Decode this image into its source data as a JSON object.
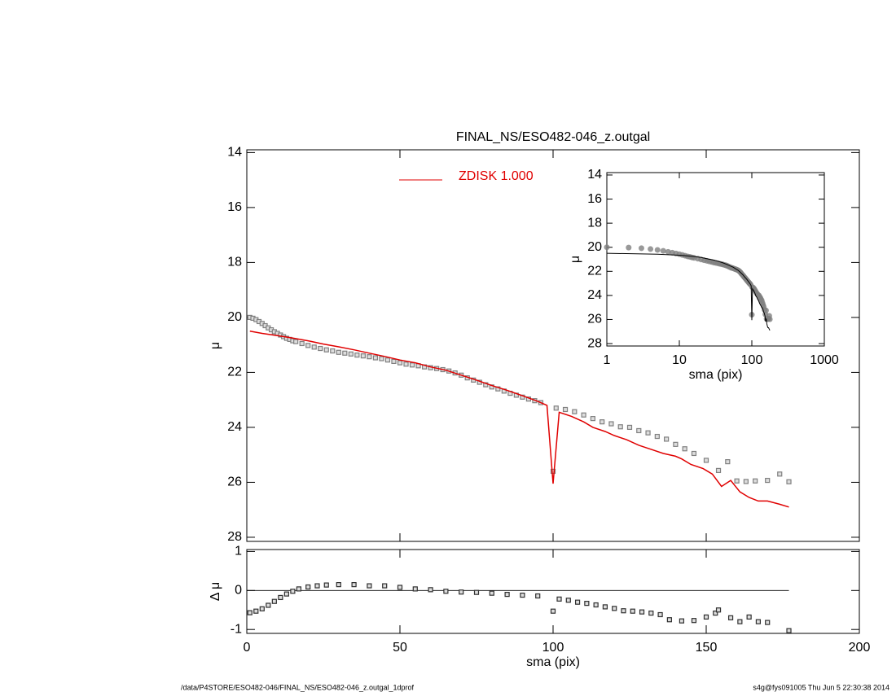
{
  "footer": {
    "left": "/data/P4STORE/ESO482-046/FINAL_NS/ESO482-046_z.outgal_1dprof",
    "right": "s4g@fys091005  Thu Jun  5 22:30:38 2014"
  },
  "chart_data": [
    {
      "type": "scatter",
      "title": "FINAL_NS/ESO482-046_z.outgal",
      "ylabel": "μ",
      "xlim": [
        0,
        200
      ],
      "xticks": [
        0,
        50,
        100,
        150,
        200
      ],
      "ylim": [
        13.9,
        28.15
      ],
      "y_reversed": true,
      "yticks": [
        14,
        16,
        18,
        20,
        22,
        24,
        26,
        28
      ],
      "legend": "top",
      "series": [
        {
          "color": "#808080",
          "marker": "square",
          "x": [
            1,
            2,
            3,
            4,
            5,
            6,
            7,
            8,
            9,
            10,
            11,
            12,
            13,
            14,
            15,
            16,
            18,
            20,
            22,
            24,
            26,
            28,
            30,
            32,
            34,
            36,
            38,
            40,
            42,
            44,
            46,
            48,
            50,
            52,
            54,
            56,
            58,
            60,
            62,
            64,
            66,
            68,
            70,
            72,
            74,
            76,
            78,
            80,
            82,
            84,
            86,
            88,
            90,
            92,
            94,
            96,
            100,
            101,
            104,
            107,
            110,
            113,
            116,
            119,
            122,
            125,
            128,
            131,
            134,
            137,
            140,
            143,
            146,
            150,
            154,
            157,
            160,
            163,
            166,
            170,
            174,
            177
          ],
          "values": [
            20.0,
            20.03,
            20.08,
            20.15,
            20.22,
            20.3,
            20.38,
            20.45,
            20.52,
            20.58,
            20.64,
            20.7,
            20.76,
            20.8,
            20.85,
            20.88,
            20.95,
            21.02,
            21.08,
            21.13,
            21.18,
            21.22,
            21.27,
            21.3,
            21.33,
            21.37,
            21.4,
            21.43,
            21.47,
            21.5,
            21.55,
            21.6,
            21.65,
            21.7,
            21.73,
            21.76,
            21.8,
            21.83,
            21.86,
            21.9,
            21.95,
            22.02,
            22.1,
            22.2,
            22.28,
            22.36,
            22.45,
            22.53,
            22.6,
            22.68,
            22.76,
            22.83,
            22.9,
            22.97,
            23.03,
            23.1,
            25.6,
            23.3,
            23.35,
            23.43,
            23.55,
            23.68,
            23.8,
            23.87,
            23.98,
            24.0,
            24.12,
            24.2,
            24.33,
            24.43,
            24.62,
            24.78,
            24.95,
            25.2,
            25.57,
            25.25,
            25.95,
            25.97,
            25.95,
            25.93,
            25.7,
            25.98
          ]
        },
        {
          "name": "ZDISK  1.000",
          "color": "#e00000",
          "marker": "line",
          "x": [
            1,
            5,
            10,
            15,
            20,
            25,
            30,
            35,
            40,
            45,
            50,
            55,
            60,
            65,
            70,
            75,
            80,
            85,
            90,
            95,
            98,
            100,
            102,
            106,
            110,
            113,
            117,
            120,
            124,
            128,
            132,
            136,
            140,
            142,
            145,
            149,
            152,
            155,
            158,
            161,
            164,
            167,
            170,
            174,
            177
          ],
          "values": [
            20.5,
            20.58,
            20.66,
            20.75,
            20.85,
            20.97,
            21.07,
            21.18,
            21.3,
            21.42,
            21.55,
            21.65,
            21.8,
            21.92,
            22.1,
            22.28,
            22.48,
            22.65,
            22.85,
            23.05,
            23.2,
            26.05,
            23.45,
            23.6,
            23.8,
            24.0,
            24.15,
            24.3,
            24.45,
            24.65,
            24.8,
            24.95,
            25.05,
            25.15,
            25.35,
            25.5,
            25.7,
            26.15,
            25.93,
            26.35,
            26.55,
            26.68,
            26.68,
            26.8,
            26.9
          ]
        }
      ]
    },
    {
      "type": "scatter",
      "ylabel": "Δ μ",
      "xlabel": "sma (pix)",
      "xlim": [
        0,
        200
      ],
      "xticks": [
        0,
        50,
        100,
        150,
        200
      ],
      "ylim": [
        -1.1,
        1.05
      ],
      "yticks": [
        -1,
        0,
        1
      ],
      "reference_line": 0,
      "color": "#303030",
      "marker": "square",
      "x": [
        1,
        3,
        5,
        7,
        9,
        11,
        13,
        15,
        17,
        20,
        23,
        26,
        30,
        35,
        40,
        45,
        50,
        55,
        60,
        65,
        70,
        75,
        80,
        85,
        90,
        95,
        100,
        102,
        105,
        108,
        111,
        114,
        117,
        120,
        123,
        126,
        129,
        132,
        135,
        138,
        142,
        146,
        150,
        153,
        154,
        158,
        161,
        164,
        167,
        170,
        177
      ],
      "values": [
        -0.57,
        -0.53,
        -0.47,
        -0.38,
        -0.28,
        -0.18,
        -0.09,
        -0.02,
        0.04,
        0.09,
        0.12,
        0.14,
        0.15,
        0.15,
        0.12,
        0.12,
        0.08,
        0.04,
        0.02,
        -0.02,
        -0.04,
        -0.05,
        -0.07,
        -0.1,
        -0.12,
        -0.14,
        -0.53,
        -0.22,
        -0.25,
        -0.3,
        -0.33,
        -0.37,
        -0.42,
        -0.46,
        -0.52,
        -0.53,
        -0.55,
        -0.58,
        -0.62,
        -0.75,
        -0.78,
        -0.77,
        -0.68,
        -0.58,
        -0.5,
        -0.7,
        -0.8,
        -0.68,
        -0.8,
        -0.82,
        -1.03
      ]
    },
    {
      "type": "scatter",
      "xlabel": "sma (pix)",
      "ylabel": "μ",
      "xscale": "log",
      "xlim": [
        1,
        1000
      ],
      "xticks": [
        1,
        10,
        100,
        1000
      ],
      "ylim": [
        13.8,
        28.2
      ],
      "y_reversed": true,
      "yticks": [
        14,
        16,
        18,
        20,
        22,
        24,
        26,
        28
      ]
    }
  ]
}
